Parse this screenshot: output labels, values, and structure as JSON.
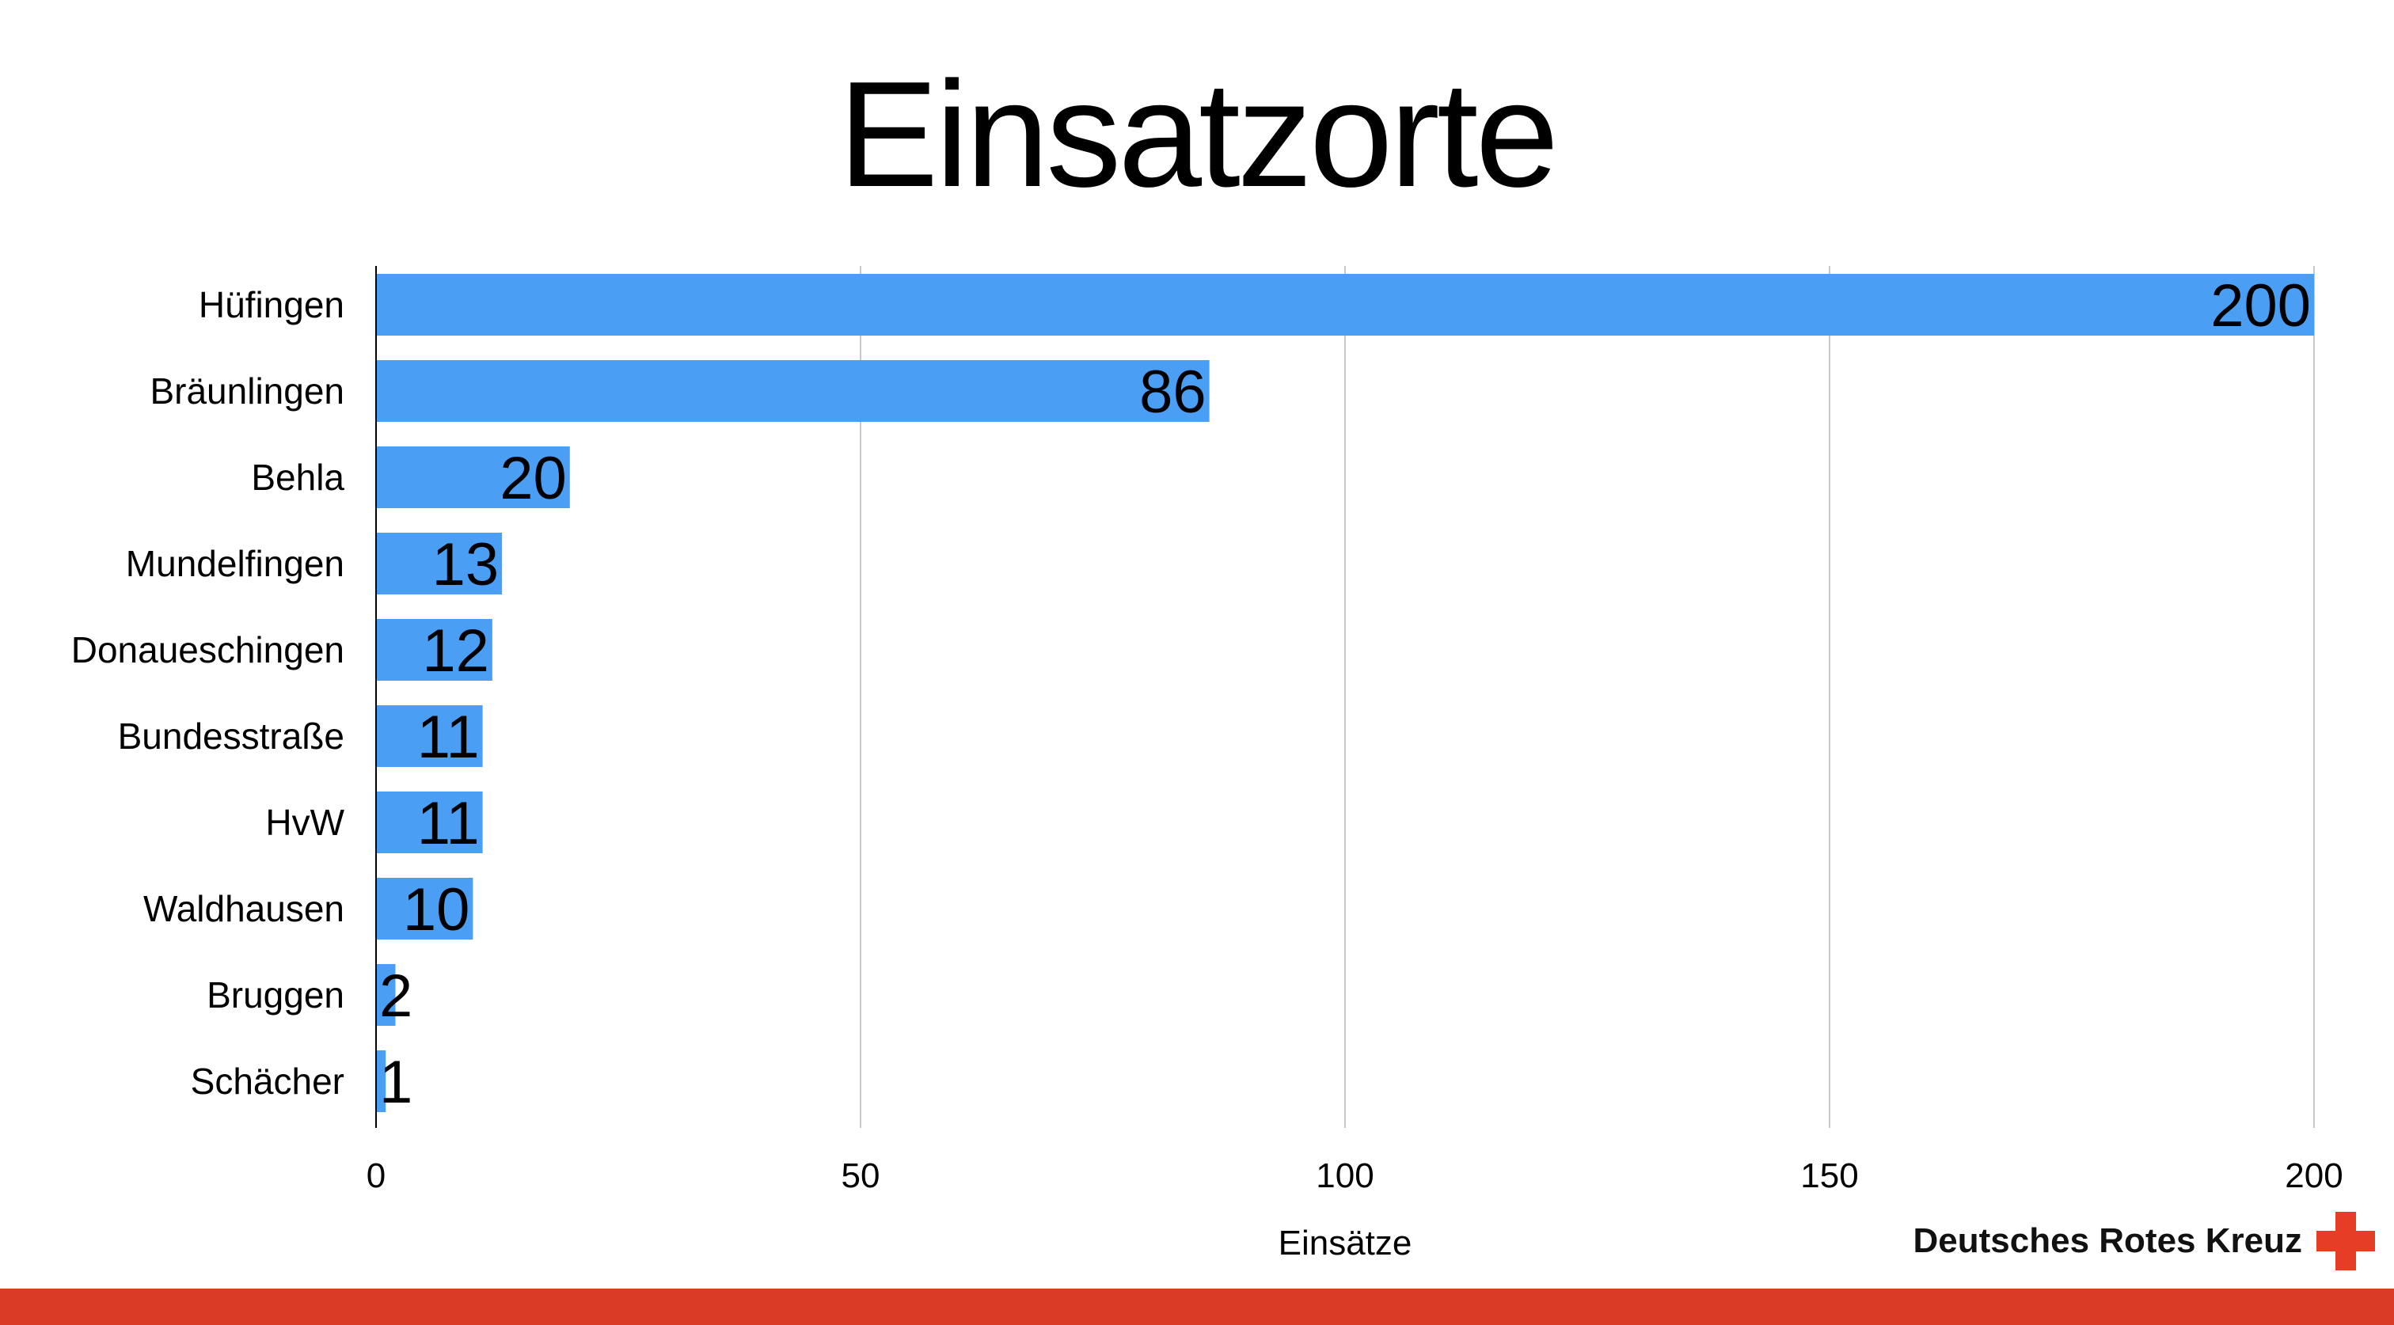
{
  "slide": {
    "title": "Einsatzorte",
    "footer_color": "#DA3B26",
    "logo": {
      "text": "Deutsches Rotes Kreuz",
      "icon": "red-cross-icon",
      "color": "#E53D26"
    }
  },
  "chart_data": {
    "type": "bar",
    "orientation": "horizontal",
    "title": "",
    "categories": [
      "Hüfingen",
      "Bräunlingen",
      "Behla",
      "Mundelfingen",
      "Donaueschingen",
      "Bundesstraße",
      "HvW",
      "Waldhausen",
      "Bruggen",
      "Schächer"
    ],
    "values": [
      200,
      86,
      20,
      13,
      12,
      11,
      11,
      10,
      2,
      1
    ],
    "data_labels": [
      "200",
      "86",
      "20",
      "13",
      "12",
      "11",
      "11",
      "10",
      "2",
      "1"
    ],
    "xlabel": "Einsätze",
    "ylabel": "",
    "xlim": [
      0,
      200
    ],
    "xticks": [
      0,
      50,
      100,
      150,
      200
    ],
    "xtick_labels": [
      "0",
      "50",
      "100",
      "150",
      "200"
    ],
    "grid": true,
    "bar_color": "#4A9FF5",
    "legend": "none"
  }
}
